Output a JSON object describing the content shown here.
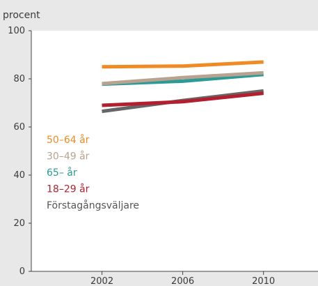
{
  "chart_data": {
    "type": "line",
    "ylabel": "procent",
    "ylim": [
      0,
      100
    ],
    "y_ticks": [
      "0",
      "20",
      "40",
      "60",
      "80",
      "100"
    ],
    "x_ticks": [
      "2002",
      "2006",
      "2010"
    ],
    "x": [
      2002,
      2006,
      2010
    ],
    "grid": false,
    "legend_placement": "left",
    "series": [
      {
        "name": "50–64 år",
        "color": "#f08a24",
        "values": [
          85,
          85.3,
          87
        ]
      },
      {
        "name": "30–49 år",
        "color": "#b9a390",
        "values": [
          78,
          80.5,
          82.5
        ]
      },
      {
        "name": "65– år",
        "color": "#2a9b95",
        "values": [
          77.8,
          79,
          81.8
        ]
      },
      {
        "name": "18–29 år",
        "color": "#b31f2e",
        "values": [
          69,
          70.5,
          74
        ]
      },
      {
        "name": "Förstagångsväljare",
        "color": "#666666",
        "values": [
          66.5,
          71,
          75
        ]
      }
    ]
  }
}
